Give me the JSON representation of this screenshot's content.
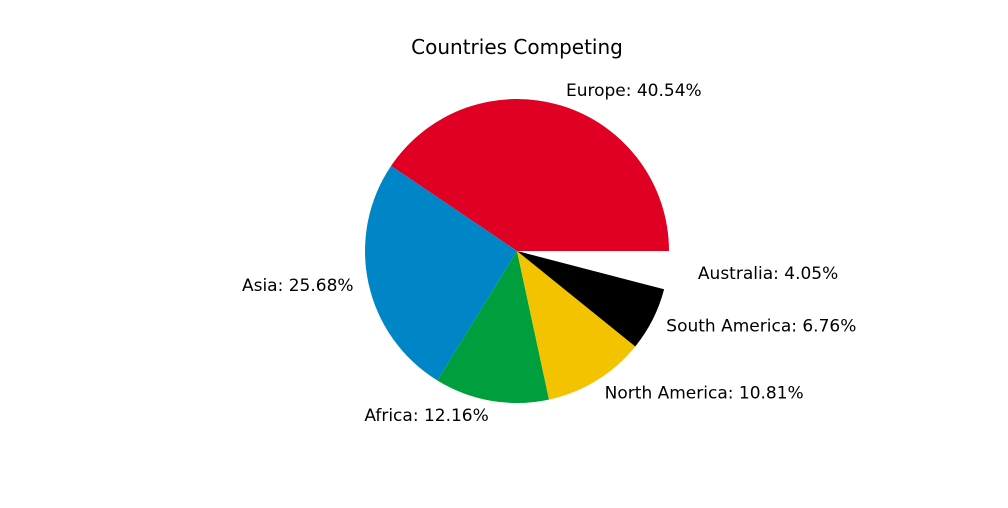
{
  "chart_data": {
    "type": "pie",
    "title": "Countries Competing",
    "start_angle_deg": 0,
    "direction": "counterclockwise",
    "exploded": "Australia",
    "slices": [
      {
        "label": "Europe",
        "value": 40.54,
        "text": "Europe: 40.54%",
        "color": "#e00024"
      },
      {
        "label": "Asia",
        "value": 25.68,
        "text": "Asia: 25.68%",
        "color": "#0085c7"
      },
      {
        "label": "Africa",
        "value": 12.16,
        "text": "Africa: 12.16%",
        "color": "#009f3d"
      },
      {
        "label": "North America",
        "value": 10.81,
        "text": "North America: 10.81%",
        "color": "#f4c300"
      },
      {
        "label": "South America",
        "value": 6.76,
        "text": "South America: 6.76%",
        "color": "#000000"
      },
      {
        "label": "Australia",
        "value": 4.05,
        "text": "Australia: 4.05%",
        "color": "#ffffff"
      }
    ]
  }
}
